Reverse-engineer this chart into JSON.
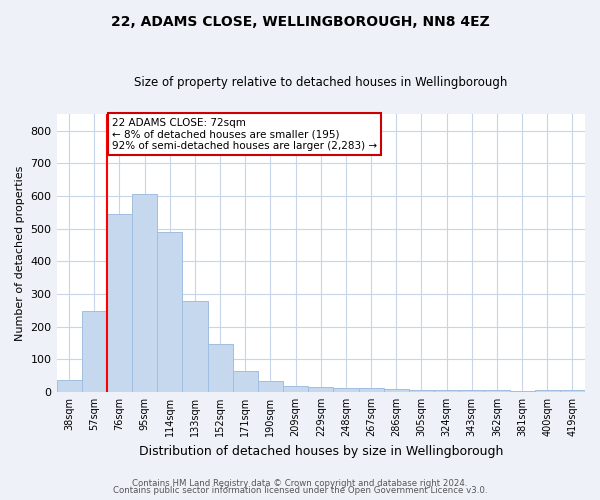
{
  "title": "22, ADAMS CLOSE, WELLINGBOROUGH, NN8 4EZ",
  "subtitle": "Size of property relative to detached houses in Wellingborough",
  "xlabel": "Distribution of detached houses by size in Wellingborough",
  "ylabel": "Number of detached properties",
  "categories": [
    "38sqm",
    "57sqm",
    "76sqm",
    "95sqm",
    "114sqm",
    "133sqm",
    "152sqm",
    "171sqm",
    "190sqm",
    "209sqm",
    "229sqm",
    "248sqm",
    "267sqm",
    "286sqm",
    "305sqm",
    "324sqm",
    "343sqm",
    "362sqm",
    "381sqm",
    "400sqm",
    "419sqm"
  ],
  "values": [
    35,
    248,
    545,
    605,
    490,
    278,
    148,
    63,
    32,
    19,
    15,
    13,
    11,
    8,
    6,
    6,
    5,
    5,
    2,
    6,
    6
  ],
  "bar_color": "#c5d8ed",
  "bar_edge_color": "#a0bee0",
  "red_line_index": 2,
  "annotation_text": "22 ADAMS CLOSE: 72sqm\n← 8% of detached houses are smaller (195)\n92% of semi-detached houses are larger (2,283) →",
  "annotation_box_color": "#ffffff",
  "annotation_box_edge_color": "#cc0000",
  "ylim": [
    0,
    850
  ],
  "yticks": [
    0,
    100,
    200,
    300,
    400,
    500,
    600,
    700,
    800
  ],
  "footer1": "Contains HM Land Registry data © Crown copyright and database right 2024.",
  "footer2": "Contains public sector information licensed under the Open Government Licence v3.0.",
  "bg_color": "#eef2f8",
  "plot_bg_color": "#ffffff",
  "grid_color": "#c8d4e8"
}
